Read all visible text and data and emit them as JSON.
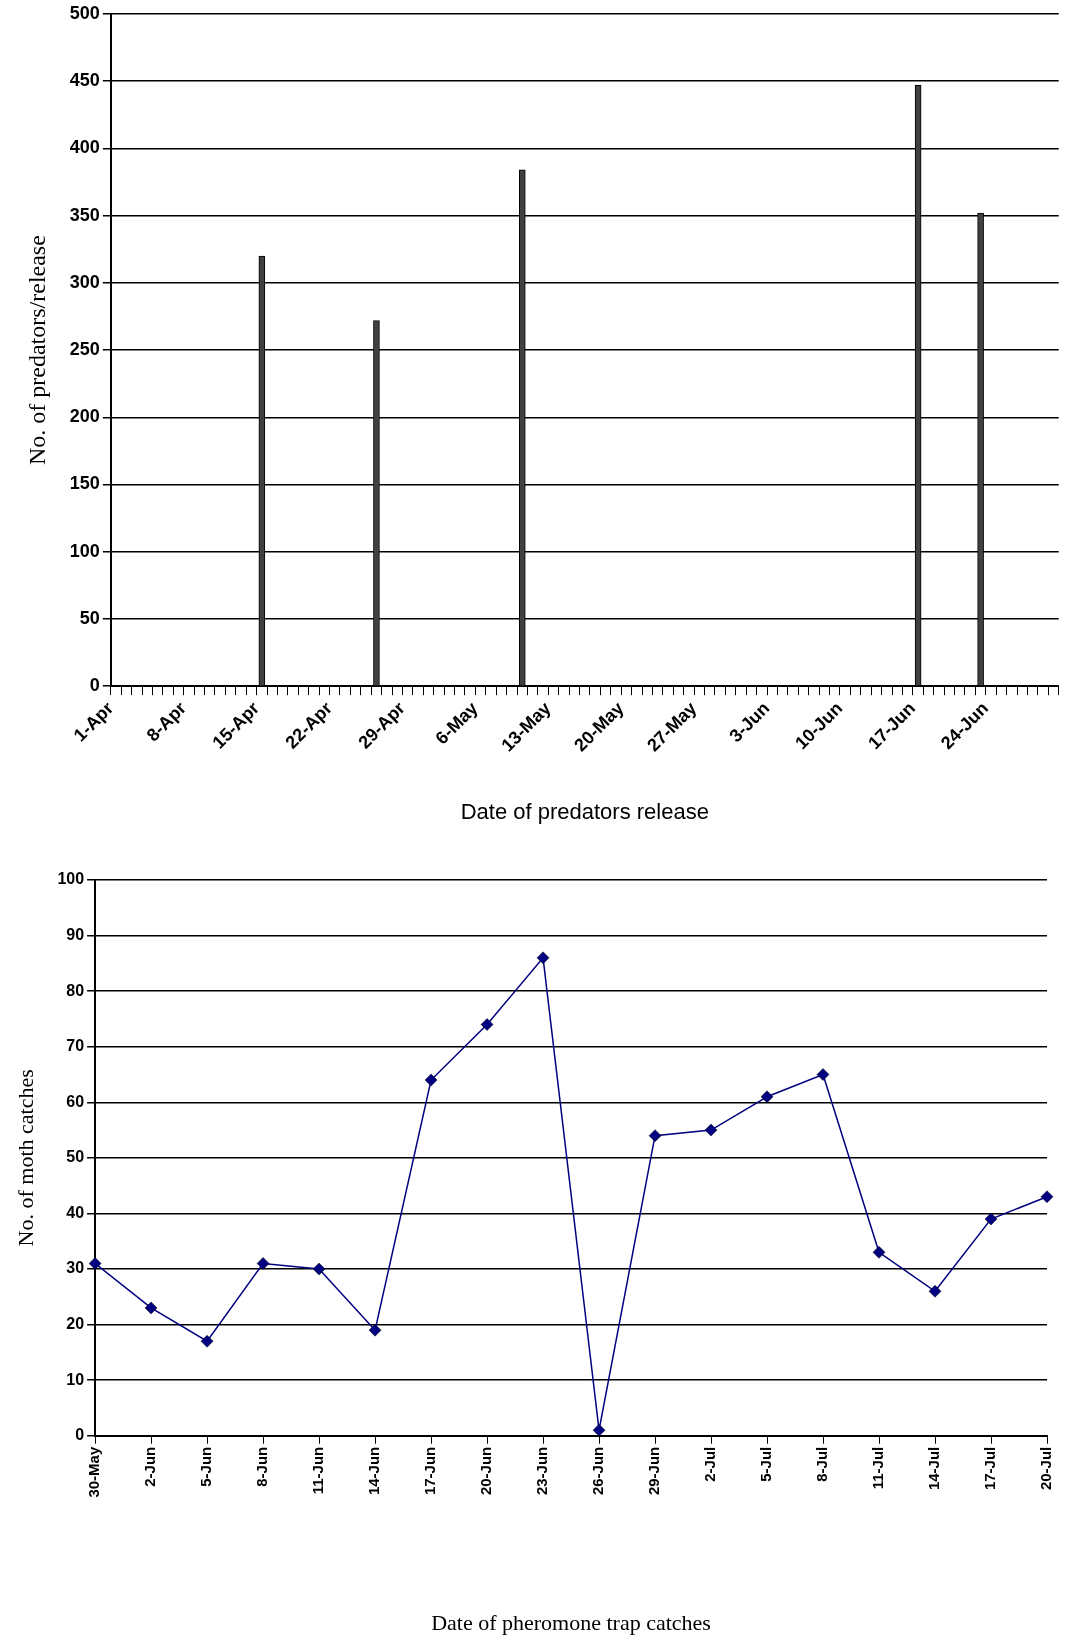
{
  "chart_data": [
    {
      "type": "bar",
      "ylabel": "No. of predators/release",
      "xlabel": "Date of predators release",
      "x": [
        "--04-15",
        "--04-26",
        "--05-10",
        "--06-17",
        "--06-23"
      ],
      "values": [
        320,
        272,
        384,
        447,
        352
      ],
      "color": "#404040",
      "xlim": [
        "--04-01",
        "--07-01"
      ],
      "xticks": [
        {
          "value": "--04-01",
          "label": "1-Apr"
        },
        {
          "value": "--04-02",
          "label": null
        },
        {
          "value": "--04-03",
          "label": null
        },
        {
          "value": "--04-04",
          "label": null
        },
        {
          "value": "--04-05",
          "label": null
        },
        {
          "value": "--04-06",
          "label": null
        },
        {
          "value": "--04-07",
          "label": null
        },
        {
          "value": "--04-08",
          "label": "8-Apr"
        },
        {
          "value": "--04-09",
          "label": null
        },
        {
          "value": "--04-10",
          "label": null
        },
        {
          "value": "--04-11",
          "label": null
        },
        {
          "value": "--04-12",
          "label": null
        },
        {
          "value": "--04-13",
          "label": null
        },
        {
          "value": "--04-14",
          "label": null
        },
        {
          "value": "--04-15",
          "label": "15-Apr"
        },
        {
          "value": "--04-16",
          "label": null
        },
        {
          "value": "--04-17",
          "label": null
        },
        {
          "value": "--04-18",
          "label": null
        },
        {
          "value": "--04-19",
          "label": null
        },
        {
          "value": "--04-20",
          "label": null
        },
        {
          "value": "--04-21",
          "label": null
        },
        {
          "value": "--04-22",
          "label": "22-Apr"
        },
        {
          "value": "--04-23",
          "label": null
        },
        {
          "value": "--04-24",
          "label": null
        },
        {
          "value": "--04-25",
          "label": null
        },
        {
          "value": "--04-26",
          "label": null
        },
        {
          "value": "--04-27",
          "label": null
        },
        {
          "value": "--04-28",
          "label": null
        },
        {
          "value": "--04-29",
          "label": "29-Apr"
        },
        {
          "value": "--04-30",
          "label": null
        },
        {
          "value": "--05-01",
          "label": null
        },
        {
          "value": "--05-02",
          "label": null
        },
        {
          "value": "--05-03",
          "label": null
        },
        {
          "value": "--05-04",
          "label": null
        },
        {
          "value": "--05-05",
          "label": null
        },
        {
          "value": "--05-06",
          "label": "6-May"
        },
        {
          "value": "--05-07",
          "label": null
        },
        {
          "value": "--05-08",
          "label": null
        },
        {
          "value": "--05-09",
          "label": null
        },
        {
          "value": "--05-10",
          "label": null
        },
        {
          "value": "--05-11",
          "label": null
        },
        {
          "value": "--05-12",
          "label": null
        },
        {
          "value": "--05-13",
          "label": "13-May"
        },
        {
          "value": "--05-14",
          "label": null
        },
        {
          "value": "--05-15",
          "label": null
        },
        {
          "value": "--05-16",
          "label": null
        },
        {
          "value": "--05-17",
          "label": null
        },
        {
          "value": "--05-18",
          "label": null
        },
        {
          "value": "--05-19",
          "label": null
        },
        {
          "value": "--05-20",
          "label": "20-May"
        },
        {
          "value": "--05-21",
          "label": null
        },
        {
          "value": "--05-22",
          "label": null
        },
        {
          "value": "--05-23",
          "label": null
        },
        {
          "value": "--05-24",
          "label": null
        },
        {
          "value": "--05-25",
          "label": null
        },
        {
          "value": "--05-26",
          "label": null
        },
        {
          "value": "--05-27",
          "label": "27-May"
        },
        {
          "value": "--05-28",
          "label": null
        },
        {
          "value": "--05-29",
          "label": null
        },
        {
          "value": "--05-30",
          "label": null
        },
        {
          "value": "--05-31",
          "label": null
        },
        {
          "value": "--06-01",
          "label": null
        },
        {
          "value": "--06-02",
          "label": null
        },
        {
          "value": "--06-03",
          "label": "3-Jun"
        },
        {
          "value": "--06-04",
          "label": null
        },
        {
          "value": "--06-05",
          "label": null
        },
        {
          "value": "--06-06",
          "label": null
        },
        {
          "value": "--06-07",
          "label": null
        },
        {
          "value": "--06-08",
          "label": null
        },
        {
          "value": "--06-09",
          "label": null
        },
        {
          "value": "--06-10",
          "label": "10-Jun"
        },
        {
          "value": "--06-11",
          "label": null
        },
        {
          "value": "--06-12",
          "label": null
        },
        {
          "value": "--06-13",
          "label": null
        },
        {
          "value": "--06-14",
          "label": null
        },
        {
          "value": "--06-15",
          "label": null
        },
        {
          "value": "--06-16",
          "label": null
        },
        {
          "value": "--06-17",
          "label": "17-Jun"
        },
        {
          "value": "--06-18",
          "label": null
        },
        {
          "value": "--06-19",
          "label": null
        },
        {
          "value": "--06-20",
          "label": null
        },
        {
          "value": "--06-21",
          "label": null
        },
        {
          "value": "--06-22",
          "label": null
        },
        {
          "value": "--06-23",
          "label": null
        },
        {
          "value": "--06-24",
          "label": "24-Jun"
        },
        {
          "value": "--06-25",
          "label": null
        },
        {
          "value": "--06-26",
          "label": null
        },
        {
          "value": "--06-27",
          "label": null
        },
        {
          "value": "--06-28",
          "label": null
        },
        {
          "value": "--06-29",
          "label": null
        },
        {
          "value": "--06-30",
          "label": null
        },
        {
          "value": "--07-01",
          "label": null
        }
      ],
      "ylim": [
        0,
        500
      ],
      "yticks": [
        0,
        50,
        100,
        150,
        200,
        250,
        300,
        350,
        400,
        450,
        500
      ],
      "grid": "y"
    },
    {
      "type": "line",
      "ylabel": "No. of moth catches",
      "xlabel": "Date of pheromone trap catches",
      "categories": [
        "30-May",
        "2-Jun",
        "5-Jun",
        "8-Jun",
        "11-Jun",
        "14-Jun",
        "17-Jun",
        "20-Jun",
        "23-Jun",
        "26-Jun",
        "29-Jun",
        "2-Jul",
        "5-Jul",
        "8-Jul",
        "11-Jul",
        "14-Jul",
        "17-Jul",
        "20-Jul"
      ],
      "values": [
        31,
        23,
        17,
        31,
        30,
        19,
        64,
        74,
        86,
        1,
        54,
        55,
        61,
        65,
        33,
        26,
        39,
        43
      ],
      "color": "#000080",
      "marker": "diamond",
      "ylim": [
        0,
        100
      ],
      "yticks": [
        0,
        10,
        20,
        30,
        40,
        50,
        60,
        70,
        80,
        90,
        100
      ],
      "grid": "y"
    }
  ]
}
